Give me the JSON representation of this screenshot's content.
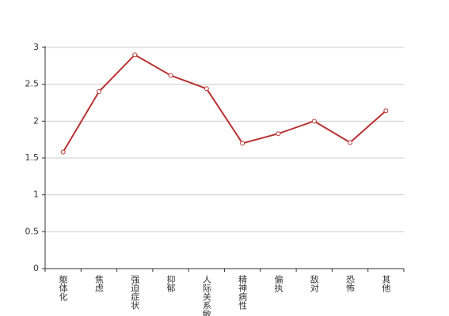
{
  "chart_data": {
    "type": "line",
    "categories": [
      "躯体化",
      "焦虑",
      "强迫症状",
      "抑郁",
      "人际关系敏感",
      "精神病性",
      "偏执",
      "敌对",
      "恐怖",
      "其他"
    ],
    "series": [
      {
        "color": "#b83232",
        "values": [
          1.58,
          2.4,
          2.9,
          2.62,
          2.44,
          1.7,
          1.83,
          2.0,
          1.71,
          2.14
        ]
      }
    ],
    "ylim": [
      0,
      3
    ],
    "yticks": [
      0,
      0.5,
      1,
      1.5,
      2,
      2.5,
      3
    ],
    "grid": true
  }
}
